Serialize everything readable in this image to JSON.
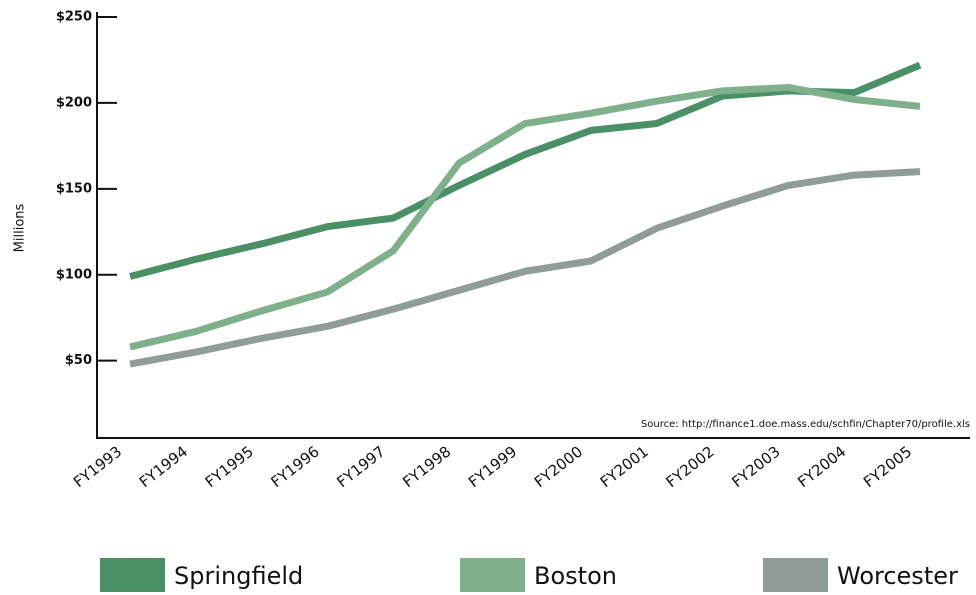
{
  "chart_data": {
    "type": "line",
    "y_label": "Millions",
    "annotation": "Source: http://finance1.doe.mass.edu/schfin/Chapter70/profile.xls",
    "categories": [
      "FY1993",
      "FY1994",
      "FY1995",
      "FY1996",
      "FY1997",
      "FY1998",
      "FY1999",
      "FY2000",
      "FY2001",
      "FY2002",
      "FY2003",
      "FY2004",
      "FY2005"
    ],
    "series": [
      {
        "name": "Springfield",
        "color": "#4a9067",
        "values": [
          99,
          109,
          118,
          128,
          133,
          152,
          170,
          184,
          188,
          204,
          207,
          206,
          222
        ]
      },
      {
        "name": "Boston",
        "color": "#7fb08c",
        "values": [
          58,
          67,
          79,
          90,
          114,
          165,
          188,
          194,
          201,
          207,
          209,
          202,
          198
        ]
      },
      {
        "name": "Worcester",
        "color": "#8f9c97",
        "values": [
          48,
          55,
          63,
          70,
          80,
          91,
          102,
          108,
          127,
          140,
          152,
          158,
          160
        ]
      }
    ],
    "ylim": [
      5,
      250
    ],
    "yticks": [
      {
        "value": 50,
        "label": "$50"
      },
      {
        "value": 100,
        "label": "$100"
      },
      {
        "value": 150,
        "label": "$150"
      },
      {
        "value": 200,
        "label": "$200"
      },
      {
        "value": 250,
        "label": "$250"
      }
    ],
    "grid": false,
    "legend": "bottom"
  }
}
